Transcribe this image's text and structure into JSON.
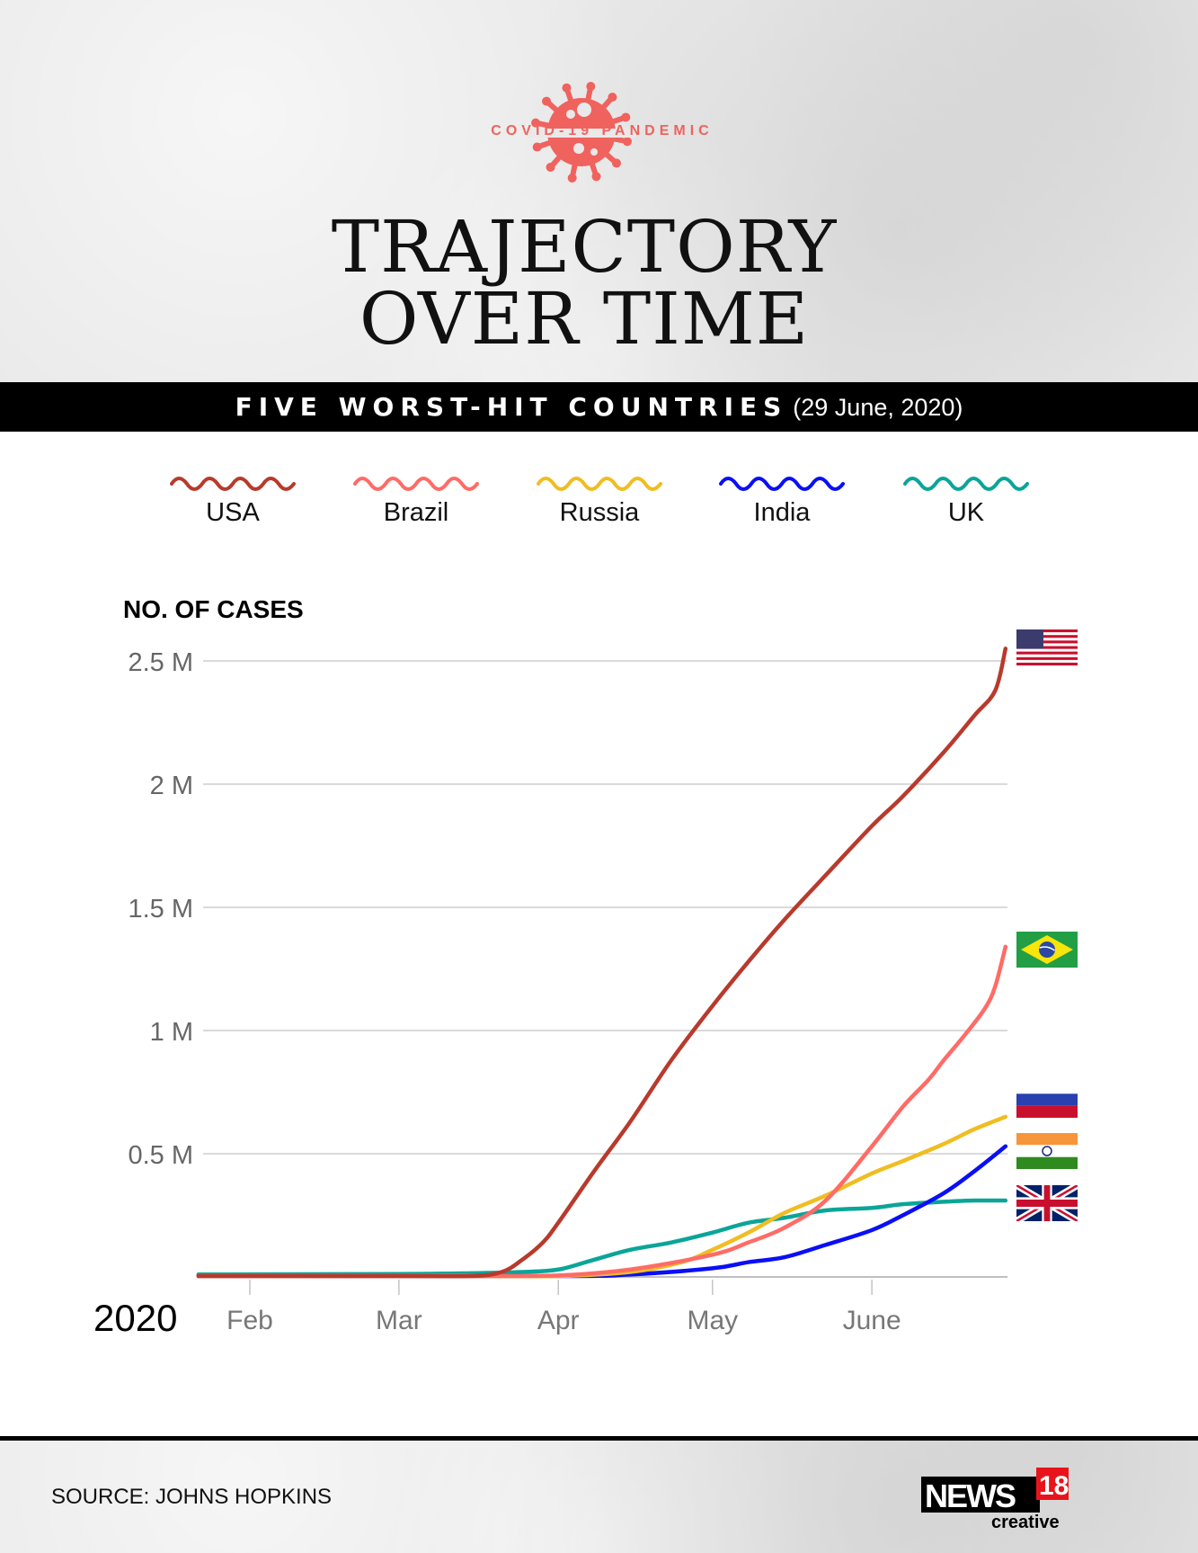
{
  "header": {
    "kicker": "COVID-19 PANDEMIC",
    "title_line1": "TRAJECTORY",
    "title_line2": "OVER TIME"
  },
  "band": {
    "title": "FIVE WORST-HIT COUNTRIES",
    "date": "(29 June, 2020)"
  },
  "footer": {
    "source": "SOURCE: JOHNS HOPKINS",
    "logo": "NEWS18 creative"
  },
  "colors": {
    "USA": "#b83a2c",
    "Brazil": "#ff6b66",
    "Russia": "#f0bd22",
    "India": "#0a0ff5",
    "UK": "#0aa598"
  },
  "chart_data": {
    "type": "line",
    "title": "TRAJECTORY OVER TIME",
    "ylabel": "NO. OF CASES",
    "xlabel": "2020",
    "ylim": [
      0,
      2.5
    ],
    "y_unit": "millions",
    "yticks": [
      {
        "v": 0.5,
        "label": "0.5 M"
      },
      {
        "v": 1,
        "label": "1 M"
      },
      {
        "v": 1.5,
        "label": "1.5 M"
      },
      {
        "v": 2,
        "label": "2 M"
      },
      {
        "v": 2.5,
        "label": "2.5 M"
      }
    ],
    "xticks": [
      {
        "day": 31,
        "label": "Feb"
      },
      {
        "day": 60,
        "label": "Mar"
      },
      {
        "day": 91,
        "label": "Apr"
      },
      {
        "day": 121,
        "label": "May"
      },
      {
        "day": 152,
        "label": "June"
      }
    ],
    "x_unit": "day of year 2020",
    "legend_position": "top",
    "grid": true,
    "series": [
      {
        "name": "USA",
        "x": [
          21,
          60,
          74,
          80,
          84,
          88,
          91,
          98,
          105,
          113,
          121,
          128,
          135,
          143,
          152,
          158,
          166,
          172,
          176,
          178
        ],
        "values": [
          0,
          0.0001,
          0.003,
          0.02,
          0.07,
          0.14,
          0.22,
          0.43,
          0.63,
          0.88,
          1.1,
          1.28,
          1.45,
          1.63,
          1.83,
          1.95,
          2.13,
          2.28,
          2.38,
          2.55
        ]
      },
      {
        "name": "Brazil",
        "x": [
          21,
          74,
          91,
          105,
          121,
          128,
          135,
          143,
          152,
          158,
          163,
          166,
          170,
          174,
          176,
          178
        ],
        "values": [
          0,
          0.0002,
          0.006,
          0.03,
          0.09,
          0.14,
          0.2,
          0.31,
          0.53,
          0.69,
          0.8,
          0.88,
          0.98,
          1.09,
          1.18,
          1.34
        ]
      },
      {
        "name": "Russia",
        "x": [
          21,
          74,
          91,
          105,
          115,
          121,
          128,
          135,
          143,
          152,
          158,
          166,
          172,
          178
        ],
        "values": [
          0,
          0.0001,
          0.003,
          0.02,
          0.06,
          0.11,
          0.18,
          0.26,
          0.33,
          0.42,
          0.47,
          0.54,
          0.6,
          0.65
        ]
      },
      {
        "name": "India",
        "x": [
          21,
          91,
          105,
          121,
          128,
          135,
          143,
          152,
          158,
          166,
          172,
          178
        ],
        "values": [
          0,
          0.002,
          0.01,
          0.035,
          0.06,
          0.08,
          0.13,
          0.19,
          0.25,
          0.34,
          0.43,
          0.53
        ]
      },
      {
        "name": "UK",
        "x": [
          21,
          60,
          74,
          84,
          91,
          98,
          105,
          113,
          121,
          128,
          135,
          143,
          152,
          158,
          166,
          172,
          178
        ],
        "values": [
          0.01,
          0.012,
          0.015,
          0.02,
          0.03,
          0.07,
          0.11,
          0.14,
          0.18,
          0.22,
          0.24,
          0.27,
          0.28,
          0.295,
          0.305,
          0.31,
          0.31
        ]
      }
    ]
  }
}
